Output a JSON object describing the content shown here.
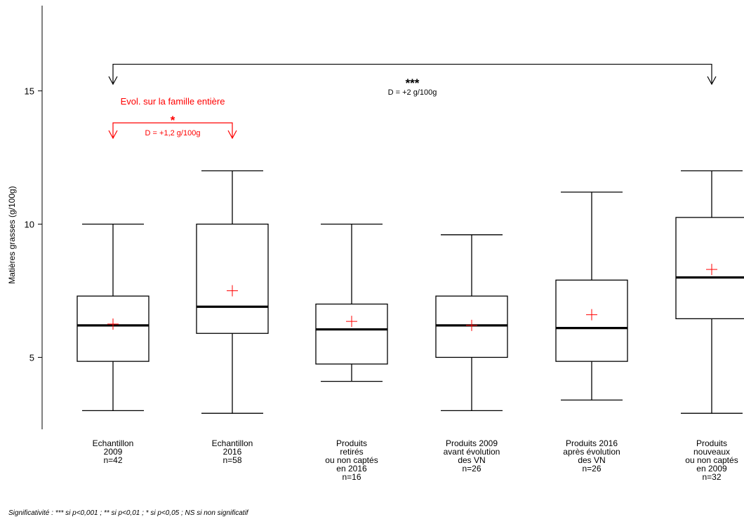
{
  "chart_data": {
    "type": "boxplot",
    "ylabel": "Matières grasses (g/100g)",
    "ylim": [
      2.3,
      18.2
    ],
    "yticks": [
      5,
      10,
      15
    ],
    "categories": [
      {
        "lines": [
          "Echantillon",
          "2009",
          "n=42"
        ],
        "min": 3.0,
        "q1": 4.85,
        "median": 6.2,
        "q3": 7.3,
        "max": 10.0,
        "mean": 6.25
      },
      {
        "lines": [
          "Echantillon",
          "2016",
          "n=58"
        ],
        "min": 2.9,
        "q1": 5.9,
        "median": 6.9,
        "q3": 10.0,
        "max": 12.0,
        "mean": 7.5
      },
      {
        "lines": [
          "Produits",
          "retirés",
          "ou non captés",
          "en 2016",
          "n=16"
        ],
        "min": 4.1,
        "q1": 4.75,
        "median": 6.05,
        "q3": 7.0,
        "max": 10.0,
        "mean": 6.35
      },
      {
        "lines": [
          "Produits 2009",
          "avant évolution",
          "des VN",
          "n=26"
        ],
        "min": 3.0,
        "q1": 5.0,
        "median": 6.2,
        "q3": 7.3,
        "max": 9.6,
        "mean": 6.2
      },
      {
        "lines": [
          "Produits 2016",
          "après évolution",
          "des VN",
          "n=26"
        ],
        "min": 3.4,
        "q1": 4.85,
        "median": 6.1,
        "q3": 7.9,
        "max": 11.2,
        "mean": 6.6
      },
      {
        "lines": [
          "Produits",
          "nouveaux",
          "ou non captés",
          "en 2009",
          "n=32"
        ],
        "min": 2.9,
        "q1": 6.45,
        "median": 8.0,
        "q3": 10.25,
        "max": 12.0,
        "mean": 8.3
      }
    ],
    "comparisons": [
      {
        "from": 0,
        "to": 5,
        "stars": "***",
        "text": "D = +2 g/100g",
        "color": "#000000",
        "y": 16.0
      },
      {
        "from": 0,
        "to": 1,
        "stars": "*",
        "text": "D = +1,2 g/100g",
        "color": "#ff0000",
        "y": 13.8,
        "title": "Evol. sur la famille entière"
      }
    ],
    "colors": {
      "box": "#000000",
      "mean": "#ff0000"
    }
  },
  "footnote": "Significativité : *** si p<0,001 ; ** si p<0,01 ; * si p<0,05 ; NS si non significatif"
}
